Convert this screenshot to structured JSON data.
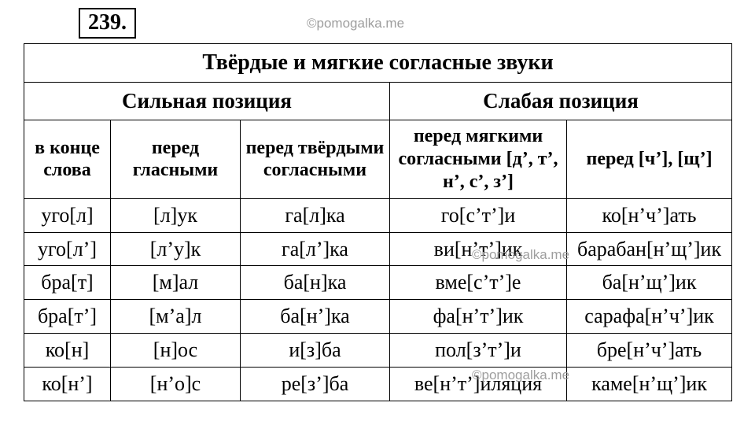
{
  "exercise_number": "239.",
  "watermark": "©pomogalka.me",
  "table": {
    "title": "Твёрдые и мягкие согласные звуки",
    "groups": [
      "Сильная позиция",
      "Слабая позиция"
    ],
    "columns": [
      "в конце слова",
      "перед гласными",
      "перед твёрдыми согласными",
      "перед мягкими согласными [д’, т’, н’, с’, з’]",
      "перед [ч’], [щ’]"
    ],
    "rows": [
      [
        "уго[л]",
        "[л]ук",
        "га[л]ка",
        "го[с’т’]и",
        "ко[н’ч’]ать"
      ],
      [
        "уго[л’]",
        "[л’у]к",
        "га[л’]ка",
        "ви[н’т’]ик",
        "барабан[н’щ’]ик"
      ],
      [
        "бра[т]",
        "[м]ал",
        "ба[н]ка",
        "вме[с’т’]е",
        "ба[н’щ’]ик"
      ],
      [
        "бра[т’]",
        "[м’а]л",
        "ба[н’]ка",
        "фа[н’т’]ик",
        "сарафа[н’ч’]ик"
      ],
      [
        "ко[н]",
        "[н]ос",
        "и[з]ба",
        "пол[з’т’]и",
        "бре[н’ч’]ать"
      ],
      [
        "ко[н’]",
        "[н’о]с",
        "ре[з’]ба",
        "ве[н’т’]иляция",
        "каме[н’щ’]ик"
      ]
    ]
  },
  "colors": {
    "text": "#000000",
    "background": "#ffffff",
    "watermark": "#9e9e9e",
    "border": "#000000"
  }
}
